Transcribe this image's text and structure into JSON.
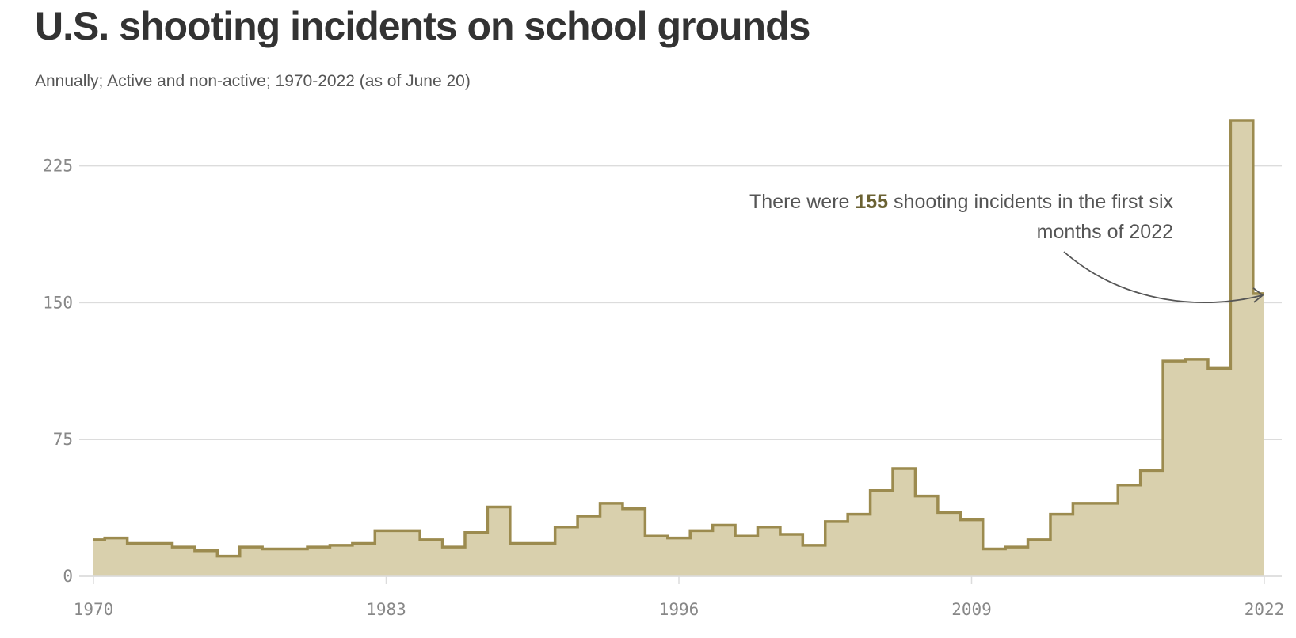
{
  "title": "U.S. shooting incidents on school grounds",
  "subtitle": "Annually; Active and non-active; 1970-2022 (as of June 20)",
  "annotation": {
    "before": "There were ",
    "highlight": "155",
    "after": " shooting incidents in the first six months of 2022"
  },
  "colors": {
    "line": "#9c8b4f",
    "fill": "#d9d0ad",
    "grid": "#dcdcdc",
    "tick": "#888888",
    "arrow": "#555555"
  },
  "chart_data": {
    "type": "area",
    "step": true,
    "x": [
      1970,
      1971,
      1972,
      1973,
      1974,
      1975,
      1976,
      1977,
      1978,
      1979,
      1980,
      1981,
      1982,
      1983,
      1984,
      1985,
      1986,
      1987,
      1988,
      1989,
      1990,
      1991,
      1992,
      1993,
      1994,
      1995,
      1996,
      1997,
      1998,
      1999,
      2000,
      2001,
      2002,
      2003,
      2004,
      2005,
      2006,
      2007,
      2008,
      2009,
      2010,
      2011,
      2012,
      2013,
      2014,
      2015,
      2016,
      2017,
      2018,
      2019,
      2020,
      2021,
      2022
    ],
    "values": [
      20,
      21,
      18,
      18,
      16,
      14,
      11,
      16,
      15,
      15,
      16,
      17,
      18,
      25,
      25,
      20,
      16,
      24,
      38,
      18,
      18,
      27,
      33,
      40,
      37,
      22,
      21,
      25,
      28,
      22,
      27,
      23,
      17,
      30,
      34,
      47,
      59,
      44,
      35,
      31,
      15,
      16,
      20,
      34,
      40,
      40,
      50,
      58,
      118,
      119,
      114,
      250,
      155
    ],
    "xlim": [
      1970,
      2022
    ],
    "ylim": [
      0,
      250
    ],
    "yticks": [
      "0",
      "75",
      "150",
      "225"
    ],
    "xticks": [
      "1970",
      "1983",
      "1996",
      "2009",
      "2022"
    ],
    "grid": true
  }
}
